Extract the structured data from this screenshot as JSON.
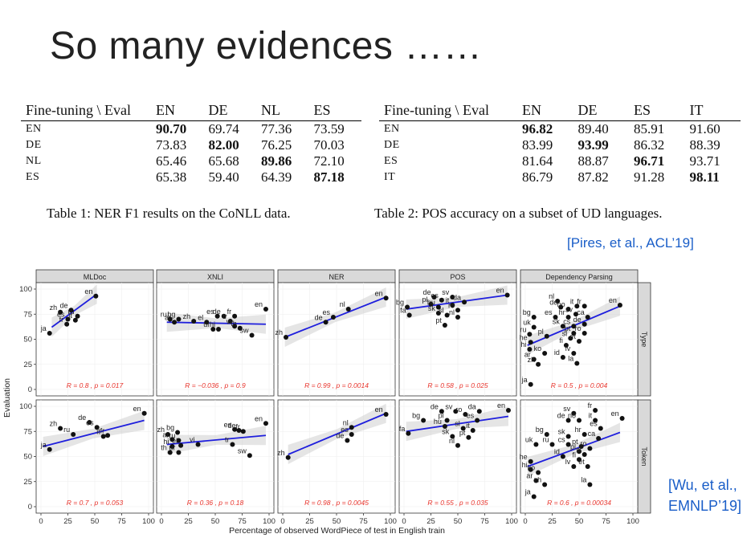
{
  "title": "So many evidences ……",
  "table1": {
    "header_left": "Fine-tuning \\ Eval",
    "columns": [
      "EN",
      "DE",
      "NL",
      "ES"
    ],
    "rows": [
      {
        "label": "EN",
        "values": [
          "90.70",
          "69.74",
          "77.36",
          "73.59"
        ],
        "best": 0
      },
      {
        "label": "DE",
        "values": [
          "73.83",
          "82.00",
          "76.25",
          "70.03"
        ],
        "best": 1
      },
      {
        "label": "NL",
        "values": [
          "65.46",
          "65.68",
          "89.86",
          "72.10"
        ],
        "best": 2
      },
      {
        "label": "ES",
        "values": [
          "65.38",
          "59.40",
          "64.39",
          "87.18"
        ],
        "best": 3
      }
    ],
    "caption": "Table 1: NER F1 results on the CoNLL data."
  },
  "table2": {
    "header_left": "Fine-tuning \\ Eval",
    "columns": [
      "EN",
      "DE",
      "ES",
      "IT"
    ],
    "rows": [
      {
        "label": "EN",
        "values": [
          "96.82",
          "89.40",
          "85.91",
          "91.60"
        ],
        "best": 0
      },
      {
        "label": "DE",
        "values": [
          "83.99",
          "93.99",
          "86.32",
          "88.39"
        ],
        "best": 1
      },
      {
        "label": "ES",
        "values": [
          "81.64",
          "88.87",
          "96.71",
          "93.71"
        ],
        "best": 2
      },
      {
        "label": "IT",
        "values": [
          "86.79",
          "87.82",
          "91.28",
          "98.11"
        ],
        "best": 3
      }
    ],
    "caption": "Table 2: POS accuracy on a subset of UD languages."
  },
  "citation_pires": "[Pires, et al., ACL’19]",
  "citation_wu_line1": "[Wu, et al.,",
  "citation_wu_line2": "EMNLP’19]",
  "chart_data": {
    "type": "scatter",
    "panels": [
      "MLDoc",
      "XNLI",
      "NER",
      "POS",
      "Dependency Parsing"
    ],
    "rows": [
      "Type",
      "Token"
    ],
    "xlabel": "Percentage of observed WordPiece of test in English train",
    "ylabel": "Evaluation",
    "xlim": [
      0,
      100
    ],
    "ylim": [
      0,
      100
    ],
    "xticks": [
      0,
      25,
      50,
      75,
      100
    ],
    "yticks": [
      0,
      25,
      50,
      75,
      100
    ],
    "line_color": "#1f1fdd",
    "stat_color": "#e8332b",
    "stats": [
      [
        "R = 0.8 , p = 0.017",
        "R = −0.036 , p = 0.9",
        "R = 0.99 , p = 0.0014",
        "R = 0.58 , p = 0.025",
        "R = 0.5 , p = 0.004"
      ],
      [
        "R = 0.7 , p = 0.053",
        "R = 0.36 , p = 0.18",
        "R = 0.98 , p = 0.0045",
        "R = 0.55 , p = 0.035",
        "R = 0.6 , p = 0.00034"
      ]
    ],
    "cells": [
      [
        {
          "fit": [
            [
              10,
              62
            ],
            [
              52,
              95
            ]
          ],
          "points": [
            {
              "l": "en",
              "x": 51,
              "y": 93
            },
            {
              "l": "zh",
              "x": 18,
              "y": 77
            },
            {
              "l": "de",
              "x": 28,
              "y": 79
            },
            {
              "l": "ru",
              "x": 34,
              "y": 73
            },
            {
              "l": "es",
              "x": 25,
              "y": 70
            },
            {
              "l": "it",
              "x": 32,
              "y": 69
            },
            {
              "l": "fr",
              "x": 24,
              "y": 65
            },
            {
              "l": "ja",
              "x": 8,
              "y": 56
            }
          ]
        },
        {
          "fit": [
            [
              5,
              67
            ],
            [
              97,
              65
            ]
          ],
          "points": [
            {
              "l": "ru",
              "x": 8,
              "y": 70
            },
            {
              "l": "bg",
              "x": 16,
              "y": 70
            },
            {
              "l": "ar",
              "x": 12,
              "y": 67
            },
            {
              "l": "zh",
              "x": 30,
              "y": 68
            },
            {
              "l": "el",
              "x": 42,
              "y": 67
            },
            {
              "l": "es",
              "x": 52,
              "y": 73
            },
            {
              "l": "de",
              "x": 58,
              "y": 73
            },
            {
              "l": "fr",
              "x": 68,
              "y": 73
            },
            {
              "l": "tr",
              "x": 64,
              "y": 68
            },
            {
              "l": "ur",
              "x": 48,
              "y": 60
            },
            {
              "l": "hi",
              "x": 53,
              "y": 60
            },
            {
              "l": "vi",
              "x": 68,
              "y": 63
            },
            {
              "l": "th",
              "x": 73,
              "y": 61
            },
            {
              "l": "sw",
              "x": 84,
              "y": 54
            },
            {
              "l": "en",
              "x": 97,
              "y": 80
            }
          ]
        },
        {
          "fit": [
            [
              2,
              52
            ],
            [
              96,
              92
            ]
          ],
          "points": [
            {
              "l": "zh",
              "x": 3,
              "y": 52
            },
            {
              "l": "de",
              "x": 40,
              "y": 67
            },
            {
              "l": "es",
              "x": 47,
              "y": 72
            },
            {
              "l": "nl",
              "x": 61,
              "y": 80
            },
            {
              "l": "en",
              "x": 96,
              "y": 91
            }
          ]
        },
        {
          "fit": [
            [
              2,
              80
            ],
            [
              96,
              94
            ]
          ],
          "points": [
            {
              "l": "bg",
              "x": 3,
              "y": 82
            },
            {
              "l": "fa",
              "x": 5,
              "y": 74
            },
            {
              "l": "de",
              "x": 28,
              "y": 92
            },
            {
              "l": "es",
              "x": 35,
              "y": 89
            },
            {
              "l": "sv",
              "x": 45,
              "y": 92
            },
            {
              "l": "pl",
              "x": 25,
              "y": 85
            },
            {
              "l": "hu",
              "x": 32,
              "y": 82
            },
            {
              "l": "it",
              "x": 45,
              "y": 84
            },
            {
              "l": "da",
              "x": 56,
              "y": 87
            },
            {
              "l": "sk",
              "x": 32,
              "y": 76
            },
            {
              "l": "ro",
              "x": 50,
              "y": 79
            },
            {
              "l": "sl",
              "x": 40,
              "y": 74
            },
            {
              "l": "nl",
              "x": 50,
              "y": 72
            },
            {
              "l": "pt",
              "x": 38,
              "y": 64
            },
            {
              "l": "en",
              "x": 96,
              "y": 94
            }
          ]
        },
        {
          "fit": [
            [
              2,
              44
            ],
            [
              88,
              83
            ]
          ],
          "points": [
            {
              "l": "nl",
              "x": 30,
              "y": 88
            },
            {
              "l": "de",
              "x": 33,
              "y": 82
            },
            {
              "l": "no",
              "x": 40,
              "y": 80
            },
            {
              "l": "it",
              "x": 48,
              "y": 83
            },
            {
              "l": "fr",
              "x": 55,
              "y": 83
            },
            {
              "l": "bg",
              "x": 8,
              "y": 72
            },
            {
              "l": "es",
              "x": 28,
              "y": 72
            },
            {
              "l": "hr",
              "x": 40,
              "y": 72
            },
            {
              "l": "sv",
              "x": 47,
              "y": 75
            },
            {
              "l": "ca",
              "x": 58,
              "y": 72
            },
            {
              "l": "uk",
              "x": 8,
              "y": 62
            },
            {
              "l": "sk",
              "x": 35,
              "y": 63
            },
            {
              "l": "cs",
              "x": 45,
              "y": 63
            },
            {
              "l": "de",
              "x": 55,
              "y": 65
            },
            {
              "l": "ru",
              "x": 4,
              "y": 55
            },
            {
              "l": "pl",
              "x": 20,
              "y": 53
            },
            {
              "l": "pt",
              "x": 45,
              "y": 56
            },
            {
              "l": "ro",
              "x": 55,
              "y": 56
            },
            {
              "l": "sl",
              "x": 42,
              "y": 51
            },
            {
              "l": "et",
              "x": 50,
              "y": 48
            },
            {
              "l": "he",
              "x": 5,
              "y": 47
            },
            {
              "l": "fi",
              "x": 38,
              "y": 44
            },
            {
              "l": "lv",
              "x": 45,
              "y": 36
            },
            {
              "l": "hi",
              "x": 4,
              "y": 40
            },
            {
              "l": "ko",
              "x": 18,
              "y": 36
            },
            {
              "l": "id",
              "x": 35,
              "y": 32
            },
            {
              "l": "ar",
              "x": 8,
              "y": 30
            },
            {
              "l": "zh",
              "x": 12,
              "y": 25
            },
            {
              "l": "la",
              "x": 48,
              "y": 26
            },
            {
              "l": "ja",
              "x": 5,
              "y": 5
            },
            {
              "l": "en",
              "x": 88,
              "y": 84
            }
          ]
        }
      ],
      [
        {
          "fit": [
            [
              2,
              60
            ],
            [
              96,
              86
            ]
          ],
          "points": [
            {
              "l": "en",
              "x": 96,
              "y": 93
            },
            {
              "l": "de",
              "x": 45,
              "y": 84
            },
            {
              "l": "zh",
              "x": 18,
              "y": 78
            },
            {
              "l": "es",
              "x": 52,
              "y": 79
            },
            {
              "l": "ru",
              "x": 30,
              "y": 72
            },
            {
              "l": "it",
              "x": 58,
              "y": 70
            },
            {
              "l": "fr",
              "x": 62,
              "y": 71
            },
            {
              "l": "ja",
              "x": 8,
              "y": 57
            }
          ]
        },
        {
          "fit": [
            [
              5,
              62
            ],
            [
              97,
              71
            ]
          ],
          "points": [
            {
              "l": "zh",
              "x": 6,
              "y": 72
            },
            {
              "l": "bg",
              "x": 15,
              "y": 74
            },
            {
              "l": "ar",
              "x": 10,
              "y": 67
            },
            {
              "l": "ru",
              "x": 16,
              "y": 66
            },
            {
              "l": "hi",
              "x": 10,
              "y": 60
            },
            {
              "l": "el",
              "x": 18,
              "y": 61
            },
            {
              "l": "vi",
              "x": 34,
              "y": 62
            },
            {
              "l": "th",
              "x": 8,
              "y": 54
            },
            {
              "l": "ur",
              "x": 16,
              "y": 54
            },
            {
              "l": "es",
              "x": 68,
              "y": 77
            },
            {
              "l": "de",
              "x": 72,
              "y": 76
            },
            {
              "l": "fr",
              "x": 76,
              "y": 75
            },
            {
              "l": "tr",
              "x": 66,
              "y": 62
            },
            {
              "l": "sw",
              "x": 82,
              "y": 51
            },
            {
              "l": "en",
              "x": 97,
              "y": 83
            }
          ]
        },
        {
          "fit": [
            [
              5,
              52
            ],
            [
              96,
              93
            ]
          ],
          "points": [
            {
              "l": "zh",
              "x": 5,
              "y": 49
            },
            {
              "l": "de",
              "x": 60,
              "y": 66
            },
            {
              "l": "es",
              "x": 64,
              "y": 72
            },
            {
              "l": "nl",
              "x": 64,
              "y": 79
            },
            {
              "l": "en",
              "x": 96,
              "y": 92
            }
          ]
        },
        {
          "fit": [
            [
              2,
              75
            ],
            [
              97,
              90
            ]
          ],
          "points": [
            {
              "l": "fa",
              "x": 4,
              "y": 73
            },
            {
              "l": "bg",
              "x": 18,
              "y": 86
            },
            {
              "l": "de",
              "x": 35,
              "y": 95
            },
            {
              "l": "sv",
              "x": 48,
              "y": 95
            },
            {
              "l": "ro",
              "x": 57,
              "y": 92
            },
            {
              "l": "da",
              "x": 70,
              "y": 95
            },
            {
              "l": "en",
              "x": 97,
              "y": 96
            },
            {
              "l": "pl",
              "x": 40,
              "y": 86
            },
            {
              "l": "es",
              "x": 68,
              "y": 86
            },
            {
              "l": "hu",
              "x": 38,
              "y": 80
            },
            {
              "l": "sl",
              "x": 55,
              "y": 78
            },
            {
              "l": "it",
              "x": 64,
              "y": 76
            },
            {
              "l": "sk",
              "x": 45,
              "y": 70
            },
            {
              "l": "pt",
              "x": 60,
              "y": 69
            },
            {
              "l": "nl",
              "x": 50,
              "y": 61
            }
          ]
        },
        {
          "fit": [
            [
              2,
              40
            ],
            [
              88,
              74
            ]
          ],
          "points": [
            {
              "l": "sv",
              "x": 45,
              "y": 93
            },
            {
              "l": "fr",
              "x": 65,
              "y": 96
            },
            {
              "l": "de",
              "x": 40,
              "y": 86
            },
            {
              "l": "no",
              "x": 50,
              "y": 86
            },
            {
              "l": "it",
              "x": 65,
              "y": 86
            },
            {
              "l": "es",
              "x": 70,
              "y": 78
            },
            {
              "l": "bg",
              "x": 20,
              "y": 72
            },
            {
              "l": "sk",
              "x": 40,
              "y": 70
            },
            {
              "l": "hr",
              "x": 55,
              "y": 72
            },
            {
              "l": "ca",
              "x": 68,
              "y": 68
            },
            {
              "l": "uk",
              "x": 10,
              "y": 62
            },
            {
              "l": "ru",
              "x": 25,
              "y": 62
            },
            {
              "l": "cs",
              "x": 40,
              "y": 62
            },
            {
              "l": "pt",
              "x": 52,
              "y": 60
            },
            {
              "l": "ro",
              "x": 60,
              "y": 58
            },
            {
              "l": "pl",
              "x": 50,
              "y": 55
            },
            {
              "l": "id",
              "x": 35,
              "y": 50
            },
            {
              "l": "sl",
              "x": 55,
              "y": 52
            },
            {
              "l": "fi",
              "x": 50,
              "y": 47
            },
            {
              "l": "he",
              "x": 5,
              "y": 45
            },
            {
              "l": "lv",
              "x": 45,
              "y": 40
            },
            {
              "l": "et",
              "x": 58,
              "y": 40
            },
            {
              "l": "hi",
              "x": 5,
              "y": 37
            },
            {
              "l": "ko",
              "x": 12,
              "y": 34
            },
            {
              "l": "ar",
              "x": 10,
              "y": 26
            },
            {
              "l": "zh",
              "x": 18,
              "y": 22
            },
            {
              "l": "la",
              "x": 60,
              "y": 22
            },
            {
              "l": "ja",
              "x": 8,
              "y": 10
            },
            {
              "l": "en",
              "x": 90,
              "y": 88
            }
          ]
        }
      ]
    ]
  }
}
